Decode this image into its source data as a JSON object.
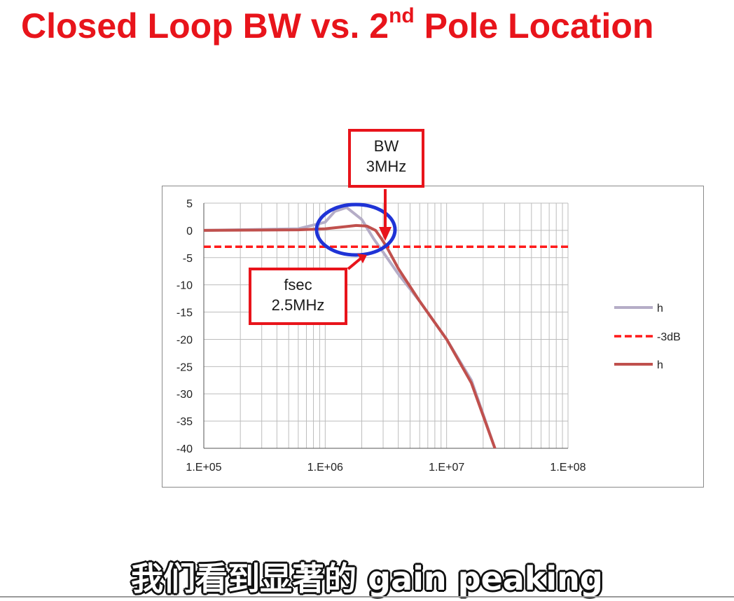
{
  "slide": {
    "title_main": "Closed Loop BW vs. 2",
    "title_sup": "nd",
    "title_end": " Pole Location"
  },
  "callouts": {
    "bw": {
      "line1": "BW",
      "line2": "3MHz"
    },
    "fsec": {
      "line1": "fsec",
      "line2": "2.5MHz"
    }
  },
  "subtitle": "我们看到显著的 gain peaking",
  "colors": {
    "title": "#e8141b",
    "callout_border": "#e8141b",
    "circle": "#1f33d6",
    "grid": "#bdbdbd"
  },
  "chart_data": {
    "type": "line",
    "x_scale": "log",
    "xlim": [
      100000,
      100000000
    ],
    "ylim": [
      -40,
      5
    ],
    "x_ticks": [
      100000,
      1000000,
      10000000,
      100000000
    ],
    "x_tick_labels": [
      "1.E+05",
      "1.E+06",
      "1.E+07",
      "1.E+08"
    ],
    "y_ticks": [
      5,
      0,
      -5,
      -10,
      -15,
      -20,
      -25,
      -30,
      -35,
      -40
    ],
    "y_tick_labels": [
      "5",
      "0",
      "-5",
      "-10",
      "-15",
      "-20",
      "-25",
      "-30",
      "-35",
      "-40"
    ],
    "grid": true,
    "legend_position": "right",
    "series": [
      {
        "name": "h",
        "color": "#b5adc7",
        "style": "solid",
        "x": [
          100000,
          600000,
          1000000,
          1200000,
          1500000,
          2000000,
          2500000,
          3000000,
          4000000,
          6000000,
          10000000,
          16000000,
          25000000
        ],
        "y": [
          0,
          0.3,
          1.5,
          3.5,
          4.2,
          2,
          -1.5,
          -4,
          -8,
          -13,
          -20,
          -27.5,
          -40
        ]
      },
      {
        "name": "-3dB",
        "color": "#ff1a1a",
        "style": "dashed",
        "x": [
          100000,
          100000000
        ],
        "y": [
          -3,
          -3
        ]
      },
      {
        "name": "h",
        "color": "#c0504d",
        "style": "solid",
        "x": [
          100000,
          600000,
          1000000,
          1500000,
          1800000,
          2200000,
          2600000,
          2900000,
          3200000,
          4000000,
          6000000,
          10000000,
          16000000,
          25000000
        ],
        "y": [
          0,
          0.1,
          0.3,
          0.7,
          0.9,
          0.8,
          0,
          -1.5,
          -3,
          -7,
          -13,
          -20,
          -28,
          -40
        ]
      }
    ],
    "annotations": [
      "BW 3MHz",
      "fsec 2.5MHz"
    ]
  }
}
